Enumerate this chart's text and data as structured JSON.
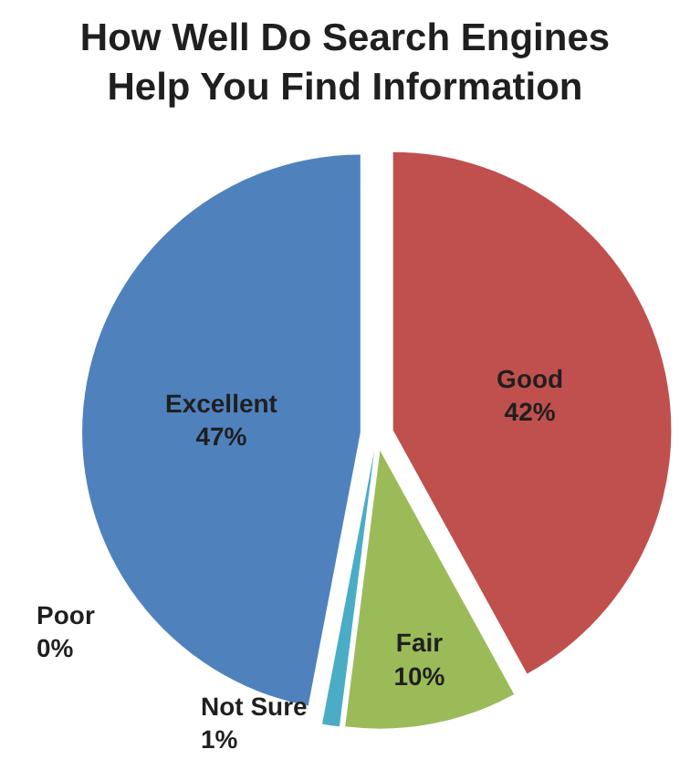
{
  "chart_data": {
    "type": "pie",
    "title": "How Well Do Search Engines Help You Find Information",
    "categories": [
      "Good",
      "Fair",
      "Not Sure",
      "Poor",
      "Excellent"
    ],
    "values": [
      42,
      10,
      1,
      0,
      47
    ],
    "value_labels": [
      "42%",
      "10%",
      "1%",
      "0%",
      "47%"
    ],
    "colors": [
      "#c0504d",
      "#9bbb59",
      "#4bacc6",
      "#8064a2",
      "#4f81bd"
    ],
    "legend": false
  }
}
